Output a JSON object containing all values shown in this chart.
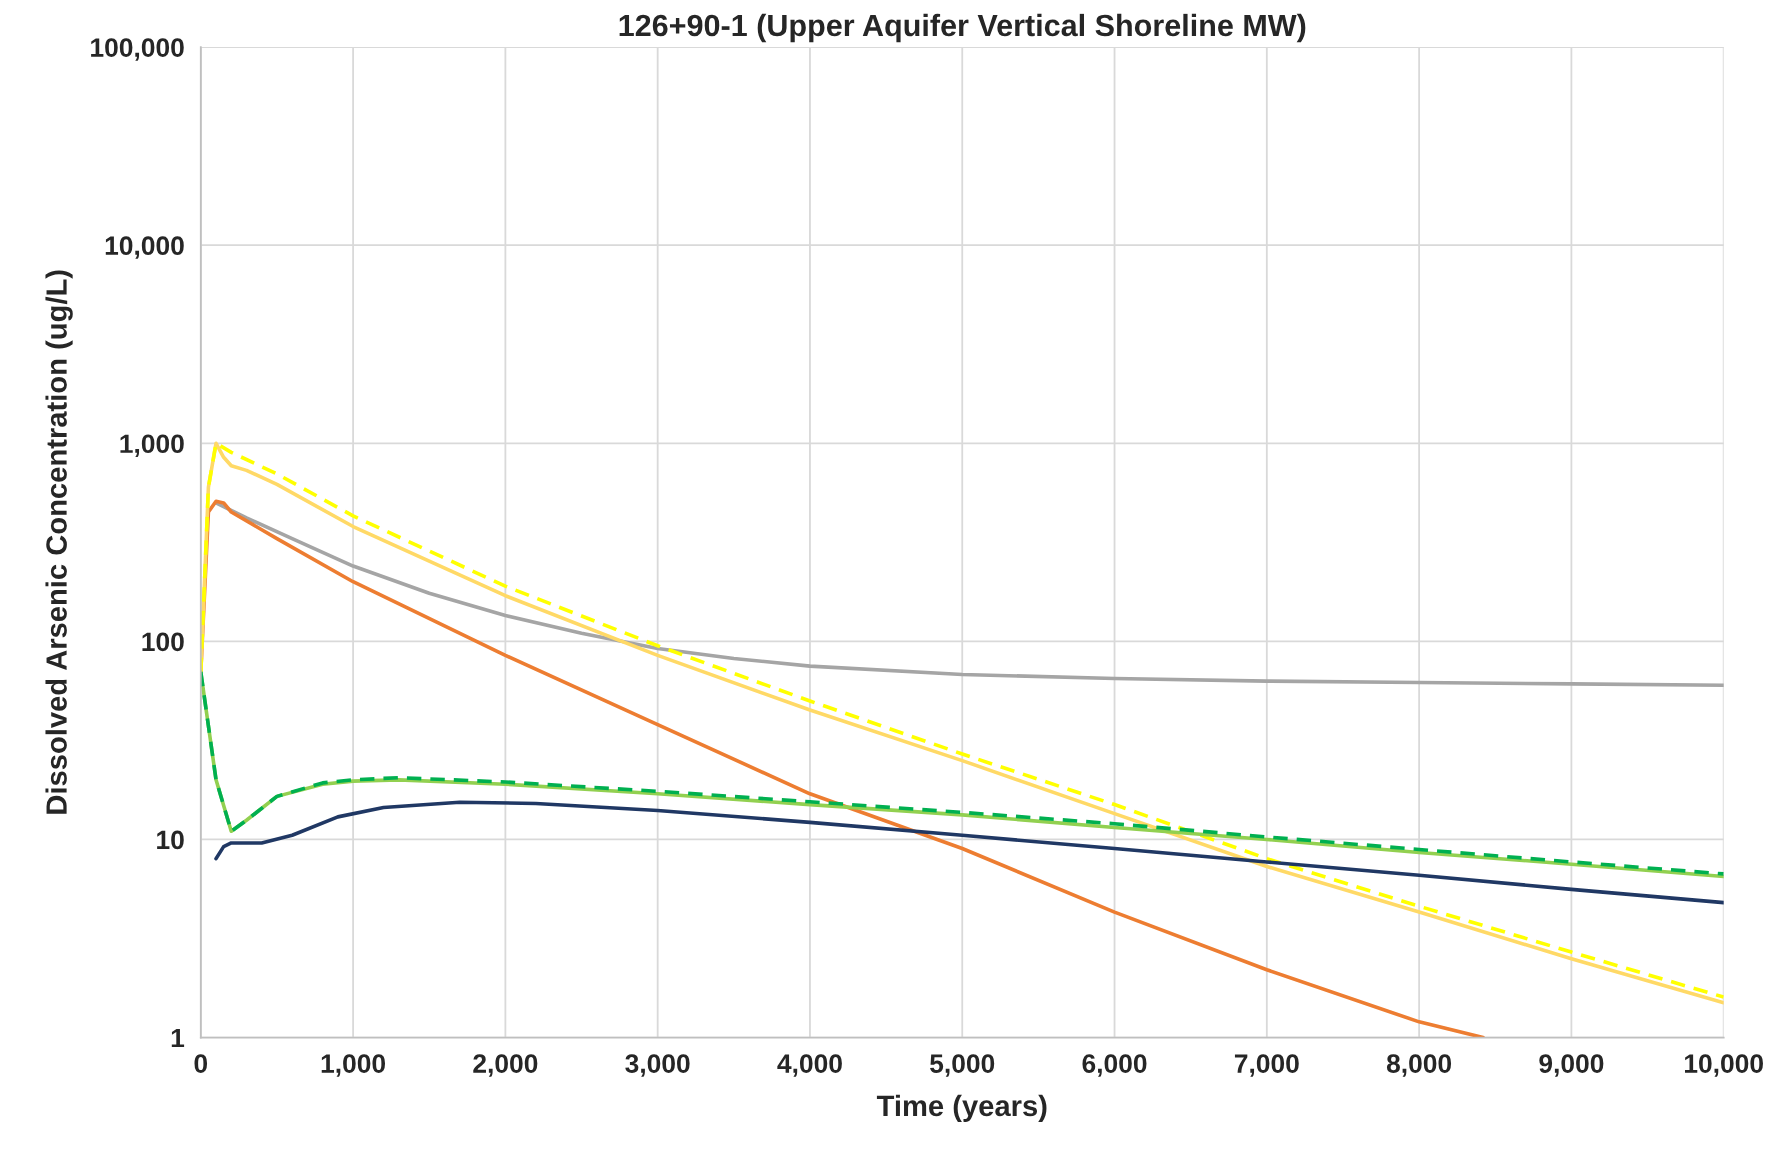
{
  "chart_data": {
    "type": "line",
    "title": "126+90-1 (Upper Aquifer Vertical Shoreline MW)",
    "xlabel": "Time (years)",
    "ylabel": "Dissolved Arsenic Concentration (ug/L)",
    "log": "y",
    "grid": true,
    "legend": false,
    "xlim": [
      0,
      10000
    ],
    "xticks": [
      {
        "value": 0,
        "label": "0"
      },
      {
        "value": 1000,
        "label": "1,000"
      },
      {
        "value": 2000,
        "label": "2,000"
      },
      {
        "value": 3000,
        "label": "3,000"
      },
      {
        "value": 4000,
        "label": "4,000"
      },
      {
        "value": 5000,
        "label": "5,000"
      },
      {
        "value": 6000,
        "label": "6,000"
      },
      {
        "value": 7000,
        "label": "7,000"
      },
      {
        "value": 8000,
        "label": "8,000"
      },
      {
        "value": 9000,
        "label": "9,000"
      },
      {
        "value": 10000,
        "label": "10,000"
      }
    ],
    "ylim": [
      1,
      100000
    ],
    "yticks": [
      {
        "value": 1,
        "label": "1"
      },
      {
        "value": 10,
        "label": "10"
      },
      {
        "value": 100,
        "label": "100"
      },
      {
        "value": 1000,
        "label": "1,000"
      },
      {
        "value": 10000,
        "label": "10,000"
      },
      {
        "value": 100000,
        "label": "100,000"
      }
    ],
    "series": [
      {
        "color": "#a5a5a5",
        "line_style": "solid",
        "x": [
          100,
          300,
          600,
          1000,
          1500,
          2000,
          2500,
          3000,
          3500,
          4000,
          5000,
          6000,
          7000,
          8000,
          9000,
          10000
        ],
        "values": [
          500,
          420,
          330,
          240,
          175,
          135,
          110,
          92,
          82,
          75,
          68,
          65,
          63,
          62,
          61,
          60
        ]
      },
      {
        "color": "#ed7d31",
        "line_style": "solid",
        "x": [
          0,
          50,
          100,
          150,
          200,
          500,
          1000,
          2000,
          3000,
          4000,
          5000,
          6000,
          7000,
          8000,
          8420
        ],
        "values": [
          70,
          450,
          510,
          500,
          450,
          330,
          200,
          85,
          38,
          17,
          9,
          4.3,
          2.2,
          1.2,
          1.0
        ]
      },
      {
        "color": "#ffd966",
        "line_style": "solid",
        "x": [
          0,
          50,
          100,
          150,
          200,
          300,
          500,
          1000,
          2000,
          3000,
          4000,
          5000,
          6000,
          7000,
          8000,
          9000,
          10000
        ],
        "values": [
          70,
          600,
          1000,
          850,
          770,
          730,
          620,
          380,
          170,
          85,
          45,
          25,
          13.5,
          7.3,
          4.3,
          2.5,
          1.5
        ]
      },
      {
        "color": "#ffff00",
        "line_style": "dashed",
        "x": [
          0,
          50,
          100,
          200,
          500,
          1000,
          2000,
          3000,
          4000,
          5000,
          6000,
          7000,
          8000,
          9000,
          10000
        ],
        "values": [
          70,
          600,
          1000,
          900,
          700,
          430,
          190,
          95,
          50,
          27,
          15,
          8,
          4.6,
          2.7,
          1.6
        ]
      },
      {
        "color": "#92d050",
        "line_style": "solid",
        "x": [
          0,
          100,
          200,
          300,
          500,
          800,
          1000,
          1300,
          2000,
          3000,
          4000,
          5000,
          6000,
          7000,
          8000,
          9000,
          10000
        ],
        "values": [
          70,
          20,
          11,
          12.5,
          16.5,
          19,
          19.7,
          20,
          19,
          17,
          15,
          13.3,
          11.5,
          10,
          8.6,
          7.5,
          6.5
        ]
      },
      {
        "color": "#00b050",
        "line_style": "dashed",
        "x": [
          0,
          100,
          200,
          300,
          500,
          800,
          1000,
          1300,
          2000,
          3000,
          4000,
          5000,
          6000,
          7000,
          8000,
          9000,
          10000
        ],
        "values": [
          70,
          20,
          11,
          12.5,
          16.5,
          19.3,
          20,
          20.5,
          19.5,
          17.5,
          15.5,
          13.7,
          12,
          10.3,
          8.9,
          7.7,
          6.7
        ]
      },
      {
        "color": "#203864",
        "line_style": "solid",
        "x": [
          100,
          150,
          200,
          400,
          600,
          900,
          1200,
          1700,
          2200,
          3000,
          4000,
          5000,
          6000,
          7000,
          8000,
          9000,
          10000
        ],
        "values": [
          8,
          9.2,
          9.6,
          9.6,
          10.5,
          13,
          14.5,
          15.4,
          15.2,
          14,
          12.2,
          10.5,
          9,
          7.7,
          6.6,
          5.6,
          4.8
        ]
      }
    ]
  }
}
